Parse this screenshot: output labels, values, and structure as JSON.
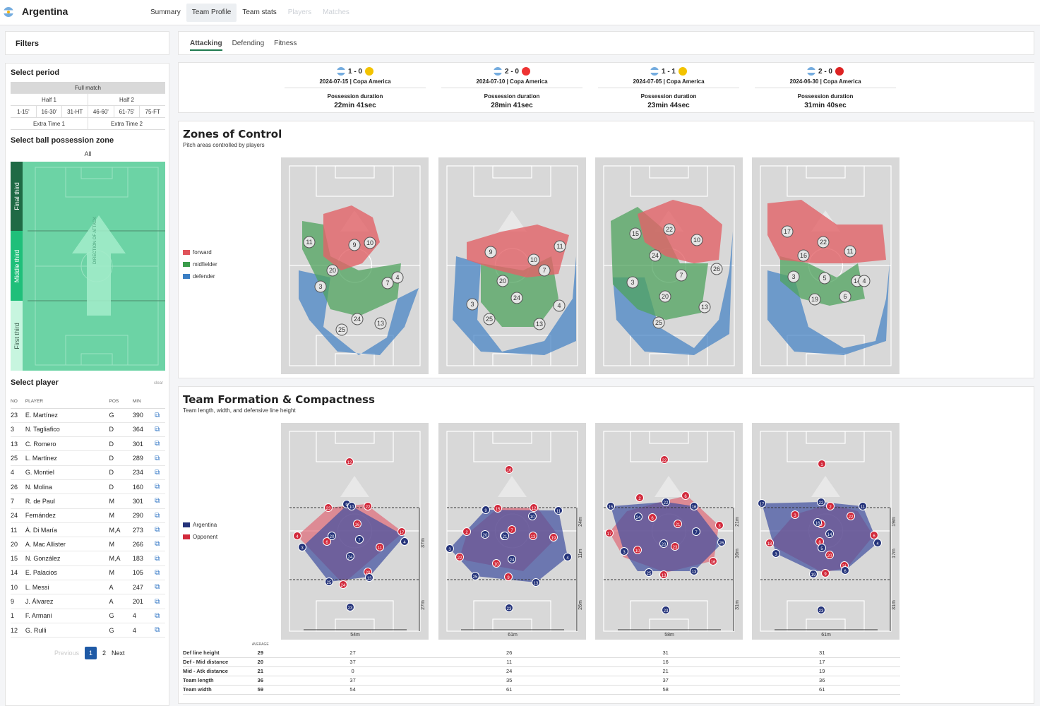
{
  "header": {
    "team": "Argentina",
    "nav": [
      "Summary",
      "Team Profile",
      "Team stats",
      "Players",
      "Matches"
    ]
  },
  "filters": {
    "title": "Filters",
    "period_title": "Select period",
    "full_match": "Full match",
    "half1": "Half 1",
    "half2": "Half 2",
    "segments": [
      "1-15'",
      "16-30'",
      "31-HT",
      "46-60'",
      "61-75'",
      "75-FT"
    ],
    "et1": "Extra Time 1",
    "et2": "Extra Time 2",
    "zone_title": "Select ball possession zone",
    "zone_all": "All",
    "zone_labels": [
      "Final third",
      "Middle third",
      "First third"
    ],
    "direction": "DIRECTION OF ATTACK",
    "player_title": "Select player",
    "clear": "clear",
    "columns": [
      "NO",
      "PLAYER",
      "POS",
      "MIN"
    ],
    "players": [
      [
        "23",
        "E. Martínez",
        "G",
        "390"
      ],
      [
        "3",
        "N. Tagliafico",
        "D",
        "364"
      ],
      [
        "13",
        "C. Romero",
        "D",
        "301"
      ],
      [
        "25",
        "L. Martínez",
        "D",
        "289"
      ],
      [
        "4",
        "G. Montiel",
        "D",
        "234"
      ],
      [
        "26",
        "N. Molina",
        "D",
        "160"
      ],
      [
        "7",
        "R. de Paul",
        "M",
        "301"
      ],
      [
        "24",
        "Fernández",
        "M",
        "290"
      ],
      [
        "11",
        "Á. Di María",
        "M,A",
        "273"
      ],
      [
        "20",
        "A. Mac Allister",
        "M",
        "266"
      ],
      [
        "15",
        "N. González",
        "M,A",
        "183"
      ],
      [
        "14",
        "E. Palacios",
        "M",
        "105"
      ],
      [
        "10",
        "L. Messi",
        "A",
        "247"
      ],
      [
        "9",
        "J. Álvarez",
        "A",
        "201"
      ],
      [
        "1",
        "F. Armani",
        "G",
        "4"
      ],
      [
        "12",
        "G. Rulli",
        "G",
        "4"
      ]
    ],
    "pager": {
      "prev": "Previous",
      "p1": "1",
      "p2": "2",
      "next": "Next"
    }
  },
  "tabs": [
    "Attacking",
    "Defending",
    "Fitness"
  ],
  "matches": [
    {
      "score": "1 - 0",
      "date": "2024-07-15 | Copa America",
      "label": "Possession duration",
      "value": "22min 41sec",
      "opp_color": "#f3c300"
    },
    {
      "score": "2 - 0",
      "date": "2024-07-10 | Copa America",
      "label": "Possession duration",
      "value": "28min 41sec",
      "opp_color": "#e33"
    },
    {
      "score": "1 - 1",
      "date": "2024-07-05 | Copa America",
      "label": "Possession duration",
      "value": "23min 44sec",
      "opp_color": "#f3c300"
    },
    {
      "score": "2 - 0",
      "date": "2024-06-30 | Copa America",
      "label": "Possession duration",
      "value": "31min 40sec",
      "opp_color": "#d22"
    }
  ],
  "zones": {
    "title": "Zones of Control",
    "subtitle": "Pitch areas controlled by players",
    "legend": [
      {
        "label": "forward",
        "color": "#e0535a"
      },
      {
        "label": "midfielder",
        "color": "#3a9c4b"
      },
      {
        "label": "defender",
        "color": "#3b7fc4"
      }
    ]
  },
  "formation": {
    "title": "Team Formation & Compactness",
    "subtitle": "Team length, width, and defensive line height",
    "legend": [
      {
        "label": "Argentina",
        "color": "#24337a"
      },
      {
        "label": "Opponent",
        "color": "#d22a3c"
      }
    ],
    "widths": [
      "54m",
      "61m",
      "58m",
      "61m"
    ],
    "side_dims": [
      [
        "37m",
        "27m"
      ],
      [
        "24m",
        "11m",
        "26m"
      ],
      [
        "21m",
        "16m",
        "31m"
      ],
      [
        "19m",
        "17m",
        "31m"
      ]
    ]
  },
  "stats": {
    "average_label": "AVERAGE",
    "rows": [
      {
        "label": "Def line height",
        "avg": "29",
        "vals": [
          "27",
          "26",
          "31",
          "31"
        ]
      },
      {
        "label": "Def - Mid distance",
        "avg": "20",
        "vals": [
          "37",
          "11",
          "16",
          "17"
        ]
      },
      {
        "label": "Mid - Atk distance",
        "avg": "21",
        "vals": [
          "0",
          "24",
          "21",
          "19"
        ]
      },
      {
        "label": "Team length",
        "avg": "36",
        "vals": [
          "37",
          "35",
          "37",
          "36"
        ]
      },
      {
        "label": "Team width",
        "avg": "59",
        "vals": [
          "54",
          "61",
          "58",
          "61"
        ]
      }
    ]
  }
}
